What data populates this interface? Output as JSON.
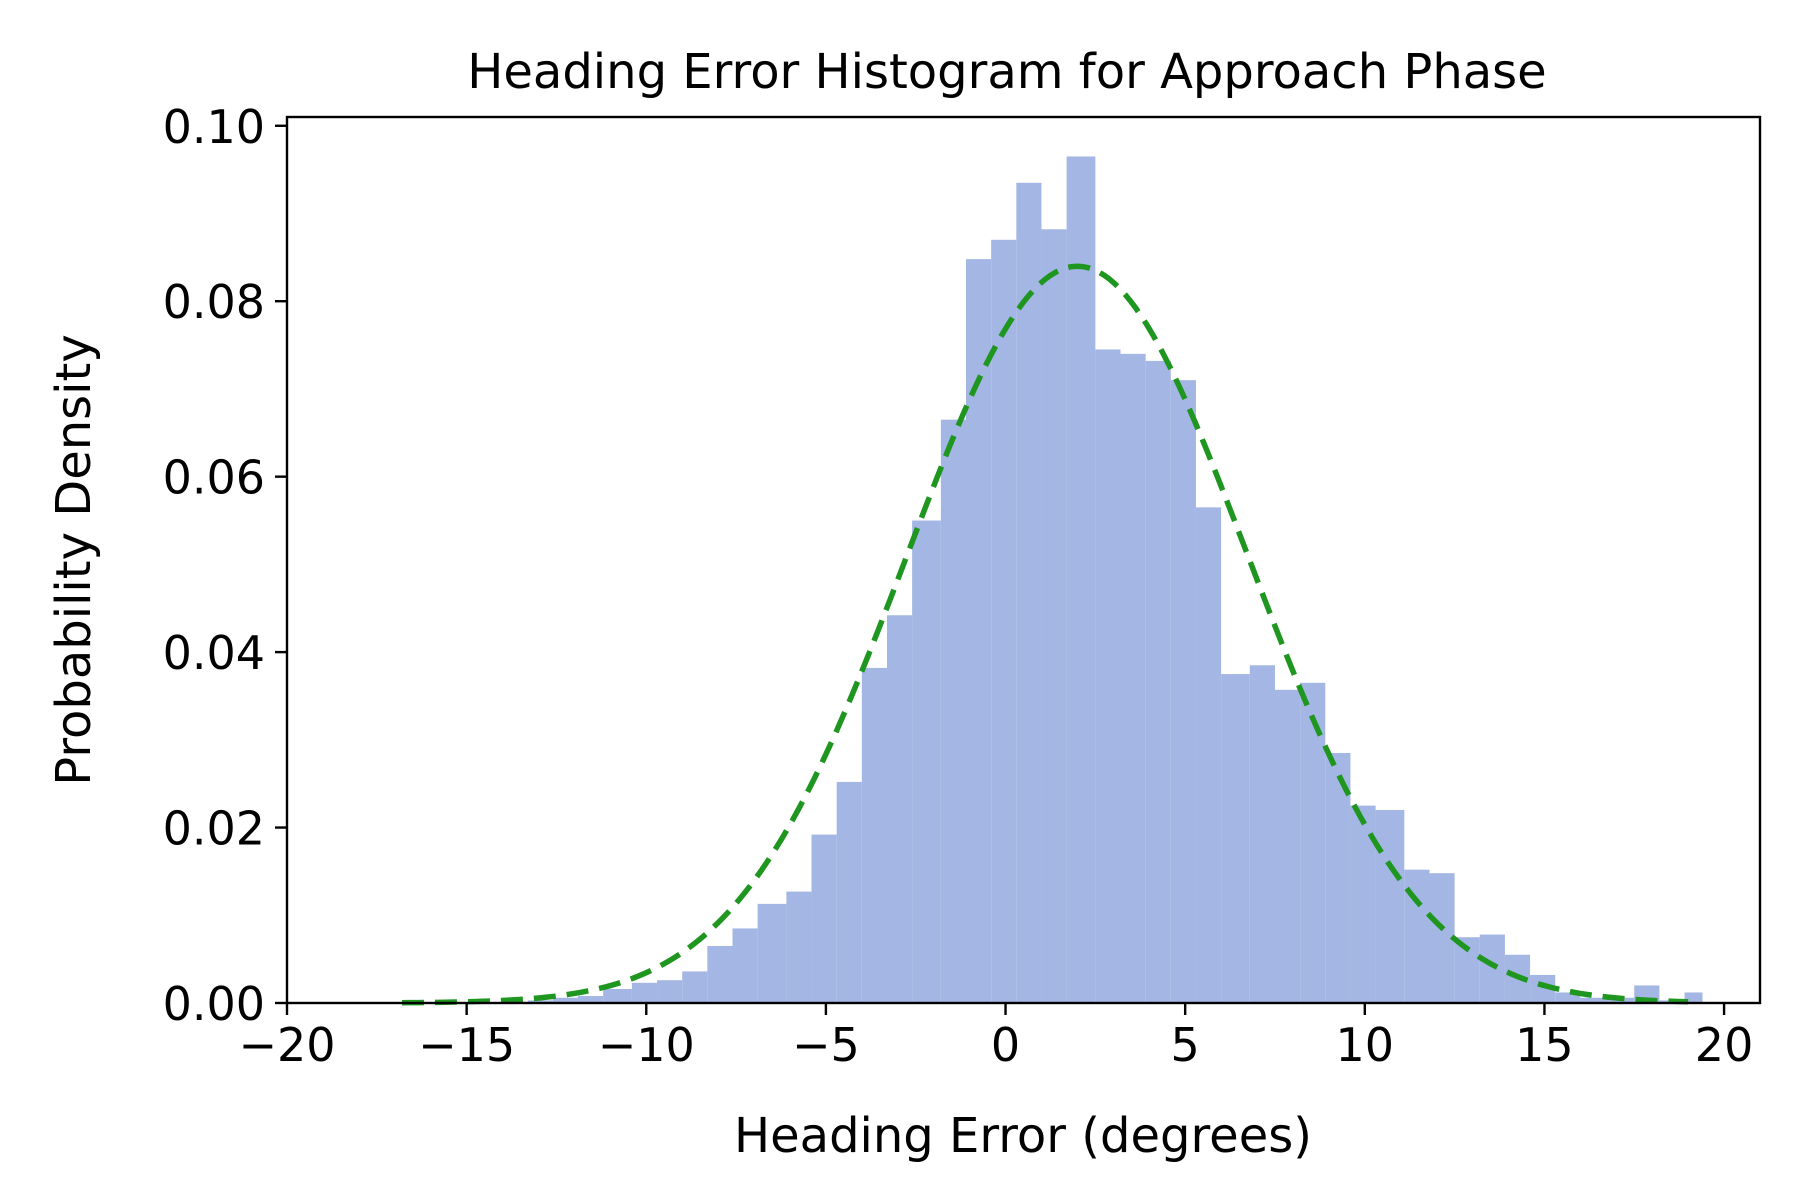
{
  "chart_data": {
    "type": "bar",
    "title": "Heading Error Histogram for Approach Phase",
    "xlabel": "Heading Error (degrees)",
    "ylabel": "Probability Density",
    "xlim": [
      -20,
      21
    ],
    "ylim": [
      0,
      0.101
    ],
    "grid": false,
    "xticks": [
      -20,
      -15,
      -10,
      -5,
      0,
      5,
      10,
      15,
      20
    ],
    "xtick_labels": [
      "−20",
      "−15",
      "−10",
      "−5",
      "0",
      "5",
      "10",
      "15",
      "20"
    ],
    "yticks": [
      0,
      0.02,
      0.04,
      0.06,
      0.08,
      0.1
    ],
    "ytick_labels": [
      "0.00",
      "0.02",
      "0.04",
      "0.06",
      "0.08",
      "0.10"
    ],
    "series": [
      {
        "kind": "histogram",
        "color": "#a4b6e3",
        "bins": [
          {
            "x0": -13.3,
            "x1": -12.6,
            "density": 0.0003
          },
          {
            "x0": -12.6,
            "x1": -11.9,
            "density": 0.0006
          },
          {
            "x0": -11.9,
            "x1": -11.2,
            "density": 0.0008
          },
          {
            "x0": -11.2,
            "x1": -10.4,
            "density": 0.0016
          },
          {
            "x0": -10.4,
            "x1": -9.7,
            "density": 0.0023
          },
          {
            "x0": -9.7,
            "x1": -9.0,
            "density": 0.0026
          },
          {
            "x0": -9.0,
            "x1": -8.3,
            "density": 0.0036
          },
          {
            "x0": -8.3,
            "x1": -7.6,
            "density": 0.0065
          },
          {
            "x0": -7.6,
            "x1": -6.9,
            "density": 0.0085
          },
          {
            "x0": -6.9,
            "x1": -6.1,
            "density": 0.0113
          },
          {
            "x0": -6.1,
            "x1": -5.4,
            "density": 0.0127
          },
          {
            "x0": -5.4,
            "x1": -4.7,
            "density": 0.0192
          },
          {
            "x0": -4.7,
            "x1": -4.0,
            "density": 0.0252
          },
          {
            "x0": -4.0,
            "x1": -3.3,
            "density": 0.0382
          },
          {
            "x0": -3.3,
            "x1": -2.6,
            "density": 0.0442
          },
          {
            "x0": -2.6,
            "x1": -1.8,
            "density": 0.055
          },
          {
            "x0": -1.8,
            "x1": -1.1,
            "density": 0.0665
          },
          {
            "x0": -1.1,
            "x1": -0.4,
            "density": 0.0848
          },
          {
            "x0": -0.4,
            "x1": 0.3,
            "density": 0.087
          },
          {
            "x0": 0.3,
            "x1": 1.0,
            "density": 0.0935
          },
          {
            "x0": 1.0,
            "x1": 1.7,
            "density": 0.0882
          },
          {
            "x0": 1.7,
            "x1": 2.5,
            "density": 0.0965
          },
          {
            "x0": 2.5,
            "x1": 3.2,
            "density": 0.0745
          },
          {
            "x0": 3.2,
            "x1": 3.9,
            "density": 0.074
          },
          {
            "x0": 3.9,
            "x1": 4.6,
            "density": 0.0732
          },
          {
            "x0": 4.6,
            "x1": 5.3,
            "density": 0.071
          },
          {
            "x0": 5.3,
            "x1": 6.0,
            "density": 0.0565
          },
          {
            "x0": 6.0,
            "x1": 6.8,
            "density": 0.0375
          },
          {
            "x0": 6.8,
            "x1": 7.5,
            "density": 0.0385
          },
          {
            "x0": 7.5,
            "x1": 8.2,
            "density": 0.0357
          },
          {
            "x0": 8.2,
            "x1": 8.9,
            "density": 0.0365
          },
          {
            "x0": 8.9,
            "x1": 9.6,
            "density": 0.0285
          },
          {
            "x0": 9.6,
            "x1": 10.3,
            "density": 0.0225
          },
          {
            "x0": 10.3,
            "x1": 11.1,
            "density": 0.022
          },
          {
            "x0": 11.1,
            "x1": 11.8,
            "density": 0.0152
          },
          {
            "x0": 11.8,
            "x1": 12.5,
            "density": 0.0148
          },
          {
            "x0": 12.5,
            "x1": 13.2,
            "density": 0.0075
          },
          {
            "x0": 13.2,
            "x1": 13.9,
            "density": 0.0078
          },
          {
            "x0": 13.9,
            "x1": 14.6,
            "density": 0.0055
          },
          {
            "x0": 14.6,
            "x1": 15.3,
            "density": 0.0032
          },
          {
            "x0": 15.3,
            "x1": 16.0,
            "density": 0.0012
          },
          {
            "x0": 16.0,
            "x1": 16.8,
            "density": 0.0006
          },
          {
            "x0": 16.8,
            "x1": 17.5,
            "density": 0.0006
          },
          {
            "x0": 17.5,
            "x1": 18.2,
            "density": 0.002
          },
          {
            "x0": 18.2,
            "x1": 18.9,
            "density": 0.0003
          },
          {
            "x0": 18.9,
            "x1": 19.4,
            "density": 0.0012
          }
        ]
      },
      {
        "kind": "line",
        "style": "dashed",
        "color": "#1f961f",
        "fit": "normal",
        "mean": 2.0,
        "std": 4.75,
        "x_range": [
          -16.8,
          19.0
        ]
      }
    ]
  }
}
